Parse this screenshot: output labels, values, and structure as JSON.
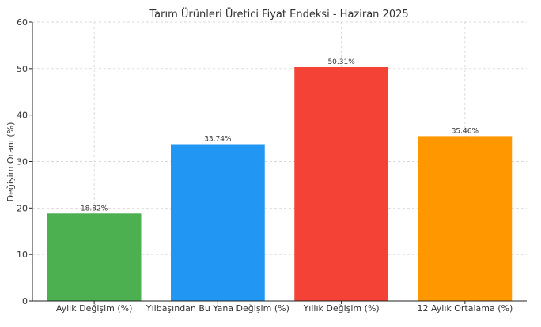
{
  "chart_data": {
    "type": "bar",
    "title": "Tarım Ürünleri Üretici Fiyat Endeksi - Haziran 2025",
    "xlabel": "",
    "ylabel": "Değişim Oranı (%)",
    "ylim": [
      0,
      60
    ],
    "yticks": [
      0,
      10,
      20,
      30,
      40,
      50,
      60
    ],
    "grid": true,
    "categories": [
      "Aylık Değişim (%)",
      "Yılbaşından Bu Yana Değişim (%)",
      "Yıllık Değişim (%)",
      "12 Aylık Ortalama (%)"
    ],
    "values": [
      18.82,
      33.74,
      50.31,
      35.46
    ],
    "data_labels": [
      "18.82%",
      "33.74%",
      "50.31%",
      "35.46%"
    ],
    "colors": [
      "#4caf50",
      "#2196f3",
      "#f44336",
      "#ff9800"
    ]
  }
}
